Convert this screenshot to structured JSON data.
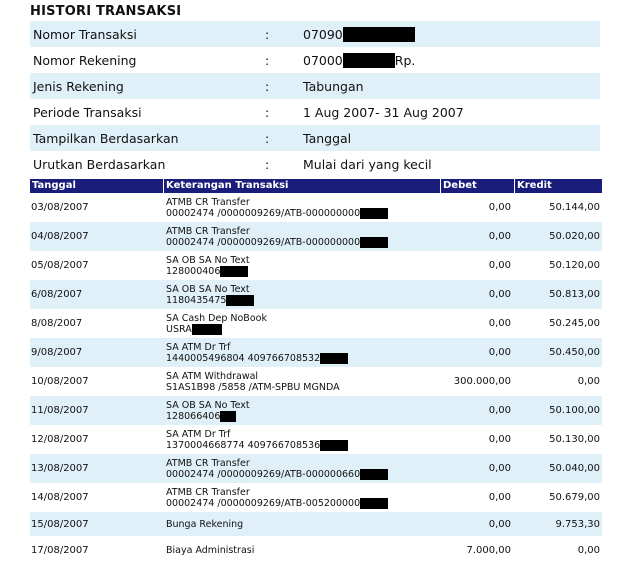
{
  "title": "HISTORI TRANSAKSI",
  "info": [
    {
      "label": "Nomor Transaksi",
      "sep": ":",
      "value": "07090",
      "suffix": ""
    },
    {
      "label": "Nomor Rekening",
      "sep": ":",
      "value": "07000",
      "suffix": "Rp."
    },
    {
      "label": "Jenis Rekening",
      "sep": ":",
      "value": "Tabungan",
      "suffix": ""
    },
    {
      "label": "Periode Transaksi",
      "sep": ":",
      "value": "1 Aug 2007- 31 Aug 2007",
      "suffix": ""
    },
    {
      "label": "Tampilkan Berdasarkan",
      "sep": ":",
      "value": "Tanggal",
      "suffix": ""
    },
    {
      "label": "Urutkan Berdasarkan",
      "sep": ":",
      "value": "Mulai dari yang kecil",
      "suffix": ""
    }
  ],
  "table": {
    "headers": [
      "Tanggal",
      "Keterangan Transaksi",
      "Debet",
      "Kredit"
    ],
    "rows": [
      {
        "date": "03/08/2007",
        "desc1": "ATMB CR Transfer",
        "desc2": "00002474 /0000009269/ATB-000000000",
        "debet": "0,00",
        "kredit": "50.144,00"
      },
      {
        "date": "04/08/2007",
        "desc1": "ATMB CR Transfer",
        "desc2": "00002474 /0000009269/ATB-000000000",
        "debet": "0,00",
        "kredit": "50.020,00"
      },
      {
        "date": "05/08/2007",
        "desc1": "SA OB SA No Text",
        "desc2": "128000406",
        "debet": "0,00",
        "kredit": "50.120,00"
      },
      {
        "date": "6/08/2007",
        "desc1": "SA OB SA No Text",
        "desc2": "1180435475",
        "debet": "0,00",
        "kredit": "50.813,00"
      },
      {
        "date": "8/08/2007",
        "desc1": "SA Cash Dep NoBook",
        "desc2": "USRA",
        "debet": "0,00",
        "kredit": "50.245,00"
      },
      {
        "date": "9/08/2007",
        "desc1": "SA ATM Dr Trf",
        "desc2": "1440005496804 409766708532",
        "debet": "0,00",
        "kredit": "50.450,00"
      },
      {
        "date": "10/08/2007",
        "desc1": "SA ATM Withdrawal",
        "desc2": "S1AS1B98 /5858 /ATM-SPBU MGNDA",
        "debet": "300.000,00",
        "kredit": "0,00"
      },
      {
        "date": "11/08/2007",
        "desc1": "SA OB SA No Text",
        "desc2": "128066406",
        "debet": "0,00",
        "kredit": "50.100,00"
      },
      {
        "date": "12/08/2007",
        "desc1": "SA ATM Dr Trf",
        "desc2": "1370004668774 409766708536",
        "debet": "0,00",
        "kredit": "50.130,00"
      },
      {
        "date": "13/08/2007",
        "desc1": "ATMB CR Transfer",
        "desc2": "00002474 /0000009269/ATB-000000660",
        "debet": "0,00",
        "kredit": "50.040,00"
      },
      {
        "date": "14/08/2007",
        "desc1": "ATMB CR Transfer",
        "desc2": "00002474 /0000009269/ATB-005200000",
        "debet": "0,00",
        "kredit": "50.679,00"
      },
      {
        "date": "15/08/2007",
        "desc1": "Bunga Rekening",
        "desc2": "",
        "debet": "0,00",
        "kredit": "9.753,30"
      },
      {
        "date": "17/08/2007",
        "desc1": "Biaya Administrasi",
        "desc2": "",
        "debet": "7.000,00",
        "kredit": "0,00"
      }
    ]
  }
}
